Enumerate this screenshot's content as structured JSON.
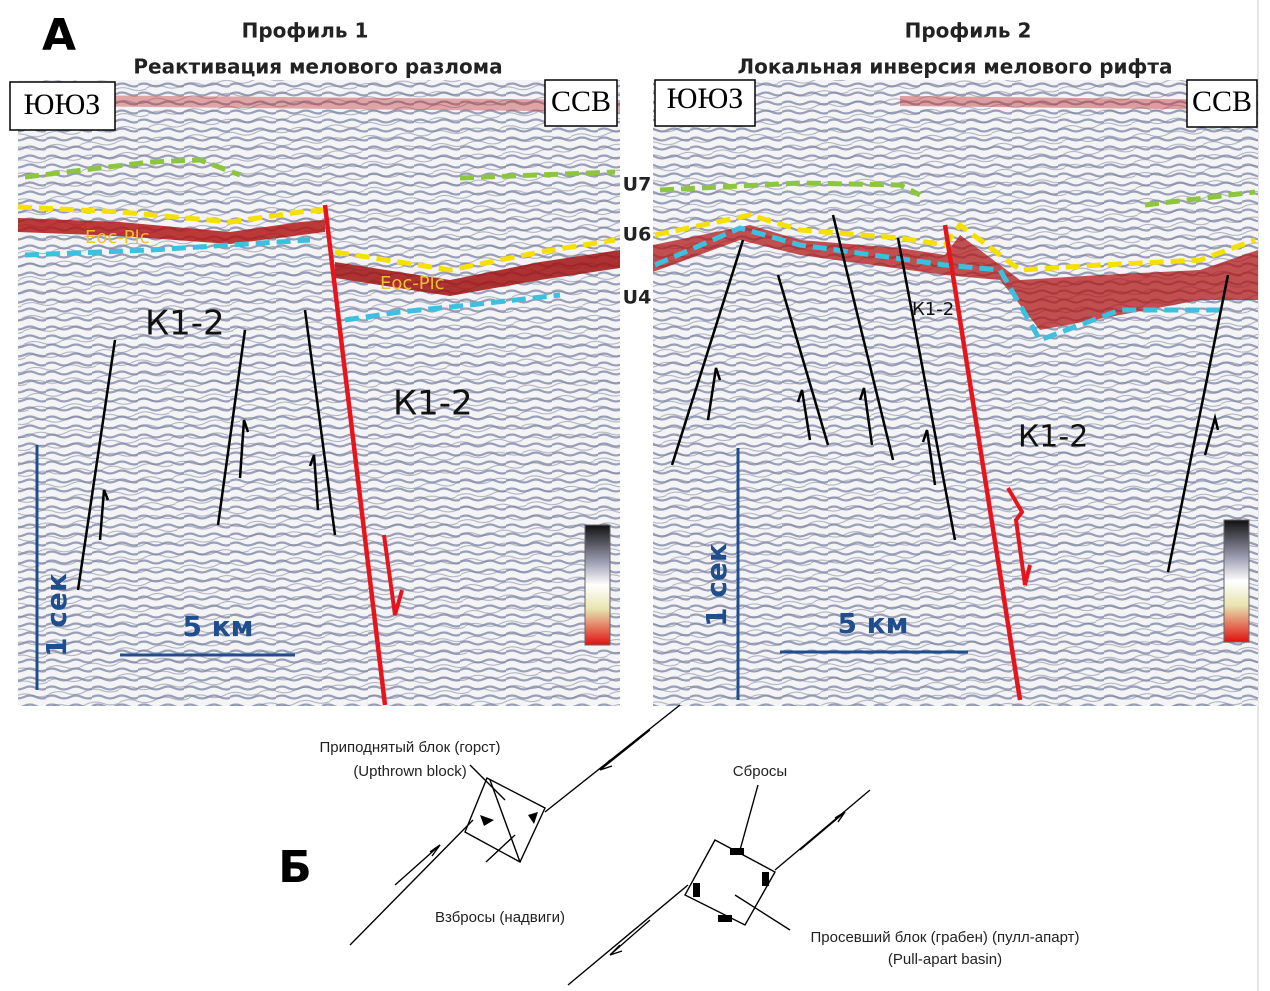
{
  "panel_a": {
    "label": "А",
    "horizons": [
      "U7",
      "U6",
      "U4"
    ],
    "profiles": [
      {
        "title": "Профиль 1",
        "subtitle": "Реактивация мелового разлома",
        "left_direction": "ЮЮЗ",
        "right_direction": "ССВ",
        "unit_labels": [
          "Eoc-Plc",
          "Eoc-Plc",
          "К1-2",
          "К1-2"
        ],
        "time_scale": "1 сек",
        "distance_scale": "5 км"
      },
      {
        "title": "Профиль 2",
        "subtitle": "Локальная инверсия мелового рифта",
        "left_direction": "ЮЮЗ",
        "right_direction": "ССВ",
        "unit_labels": [
          "К1-2",
          "К1-2"
        ],
        "time_scale": "1 сек",
        "distance_scale": "5 км"
      }
    ]
  },
  "panel_b": {
    "label": "Б",
    "annotations": [
      "Приподнятый блок (горст)",
      "(Upthrown block)",
      "Взбросы (надвиги)",
      "Сбросы",
      "Просевший блок (грабен) (пулл-апарт)",
      "(Pull-apart basin)"
    ]
  }
}
